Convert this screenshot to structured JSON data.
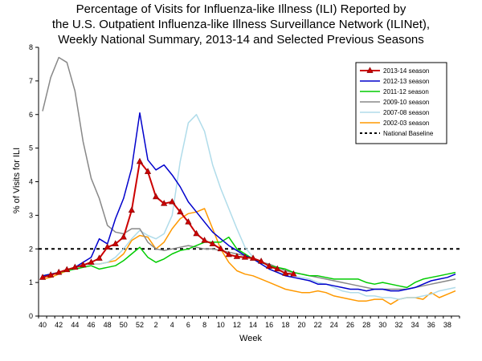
{
  "chart_data": {
    "type": "line",
    "title_lines": [
      "Percentage of Visits for Influenza-like Illness (ILI) Reported by",
      "the U.S. Outpatient Influenza-like Illness Surveillance Network (ILINet),",
      "Weekly National Summary, 2013-14 and Selected Previous Seasons"
    ],
    "xlabel": "Week",
    "ylabel": "% of Visits for ILI",
    "ylim": [
      0,
      8
    ],
    "y_ticks": [
      0,
      1,
      2,
      3,
      4,
      5,
      6,
      7,
      8
    ],
    "x_categories": [
      "40",
      "41",
      "42",
      "43",
      "44",
      "45",
      "46",
      "47",
      "48",
      "49",
      "50",
      "51",
      "52",
      "1",
      "2",
      "3",
      "4",
      "5",
      "6",
      "7",
      "8",
      "9",
      "10",
      "11",
      "12",
      "13",
      "14",
      "15",
      "16",
      "17",
      "18",
      "19",
      "20",
      "21",
      "22",
      "23",
      "24",
      "25",
      "26",
      "27",
      "28",
      "29",
      "30",
      "31",
      "32",
      "33",
      "34",
      "35",
      "36",
      "37",
      "38",
      "39"
    ],
    "x_tick_labels": [
      "40",
      "42",
      "44",
      "46",
      "48",
      "50",
      "52",
      "2",
      "4",
      "6",
      "8",
      "10",
      "12",
      "14",
      "16",
      "18",
      "20",
      "22",
      "24",
      "26",
      "28",
      "30",
      "32",
      "34",
      "36",
      "38"
    ],
    "grid": false,
    "legend_position": "top-right",
    "baseline": {
      "name": "National Baseline",
      "value": 2.0,
      "color": "#000000"
    },
    "series": [
      {
        "name": "2013-14 season",
        "color": "#cc0000",
        "marker": "triangle",
        "values": [
          1.15,
          1.22,
          1.3,
          1.38,
          1.45,
          1.52,
          1.6,
          1.72,
          2.05,
          2.15,
          2.35,
          3.15,
          4.6,
          4.3,
          3.55,
          3.35,
          3.4,
          3.1,
          2.8,
          2.45,
          2.25,
          2.15,
          2.0,
          1.83,
          1.77,
          1.75,
          1.72,
          1.63,
          1.48,
          1.4,
          1.27,
          1.25
        ]
      },
      {
        "name": "2012-13 season",
        "color": "#0000cc",
        "values": [
          1.2,
          1.25,
          1.3,
          1.38,
          1.45,
          1.6,
          1.75,
          2.3,
          2.15,
          2.9,
          3.5,
          4.4,
          6.05,
          4.65,
          4.35,
          4.5,
          4.2,
          3.85,
          3.4,
          3.1,
          2.8,
          2.5,
          2.3,
          2.1,
          1.95,
          1.8,
          1.7,
          1.55,
          1.4,
          1.3,
          1.2,
          1.15,
          1.1,
          1.05,
          0.95,
          0.95,
          0.9,
          0.85,
          0.8,
          0.8,
          0.75,
          0.8,
          0.8,
          0.75,
          0.75,
          0.8,
          0.85,
          0.95,
          1.05,
          1.1,
          1.15,
          1.25
        ]
      },
      {
        "name": "2011-12 season",
        "color": "#00cc00",
        "values": [
          1.2,
          1.25,
          1.3,
          1.35,
          1.4,
          1.45,
          1.5,
          1.4,
          1.45,
          1.5,
          1.65,
          1.85,
          2.05,
          1.75,
          1.6,
          1.7,
          1.85,
          1.95,
          2.0,
          2.1,
          2.2,
          2.2,
          2.2,
          2.35,
          2.0,
          1.85,
          1.7,
          1.6,
          1.5,
          1.45,
          1.4,
          1.3,
          1.25,
          1.2,
          1.2,
          1.15,
          1.1,
          1.1,
          1.1,
          1.1,
          1.0,
          0.95,
          1.0,
          0.95,
          0.9,
          0.85,
          1.0,
          1.1,
          1.15,
          1.2,
          1.25,
          1.3
        ]
      },
      {
        "name": "2009-10 season",
        "color": "#888888",
        "values": [
          6.1,
          7.1,
          7.7,
          7.55,
          6.7,
          5.2,
          4.1,
          3.5,
          2.7,
          2.5,
          2.45,
          2.6,
          2.6,
          2.2,
          2.0,
          1.95,
          2.0,
          2.05,
          2.1,
          2.05,
          2.0,
          2.0,
          1.95,
          1.9,
          1.85,
          1.8,
          1.7,
          1.6,
          1.55,
          1.45,
          1.35,
          1.3,
          1.25,
          1.2,
          1.15,
          1.1,
          1.05,
          1.0,
          0.95,
          0.9,
          0.85,
          0.8,
          0.8,
          0.8,
          0.8,
          0.8,
          0.85,
          0.9,
          0.95,
          1.0,
          1.05,
          1.1
        ]
      },
      {
        "name": "2007-08 season",
        "color": "#b0dcea",
        "values": [
          1.2,
          1.25,
          1.3,
          1.35,
          1.4,
          1.5,
          1.55,
          1.55,
          1.6,
          1.75,
          2.0,
          2.3,
          2.55,
          2.4,
          2.3,
          2.45,
          3.0,
          4.6,
          5.75,
          6.0,
          5.5,
          4.5,
          3.8,
          3.2,
          2.6,
          2.05,
          1.75,
          1.55,
          1.4,
          1.3,
          1.25,
          1.2,
          1.15,
          1.1,
          1.0,
          0.95,
          0.85,
          0.75,
          0.7,
          0.7,
          0.6,
          0.6,
          0.55,
          0.55,
          0.5,
          0.55,
          0.55,
          0.6,
          0.65,
          0.75,
          0.8,
          0.85
        ]
      },
      {
        "name": "2002-03 season",
        "color": "#ff9900",
        "values": [
          1.1,
          1.15,
          1.25,
          1.35,
          1.45,
          1.5,
          1.55,
          1.55,
          1.6,
          1.65,
          1.85,
          2.25,
          2.4,
          2.35,
          2.0,
          2.2,
          2.6,
          2.9,
          3.05,
          3.1,
          3.2,
          2.6,
          2.0,
          1.6,
          1.35,
          1.25,
          1.2,
          1.1,
          1.0,
          0.9,
          0.8,
          0.75,
          0.7,
          0.7,
          0.75,
          0.7,
          0.6,
          0.55,
          0.5,
          0.45,
          0.45,
          0.5,
          0.5,
          0.35,
          0.5,
          0.55,
          0.55,
          0.5,
          0.7,
          0.55,
          0.65,
          0.75
        ]
      }
    ]
  }
}
